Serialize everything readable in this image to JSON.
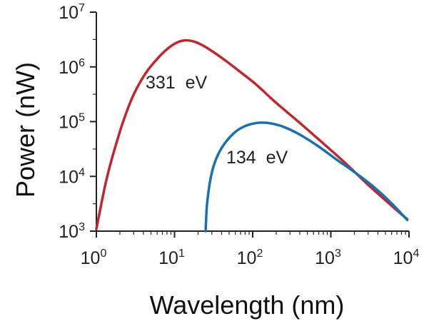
{
  "chart_data": {
    "type": "line",
    "xlabel": "Wavelength (nm)",
    "ylabel": "Power (nW)",
    "xscale": "log",
    "yscale": "log",
    "xlim": [
      1,
      10000
    ],
    "ylim": [
      1000,
      10000000
    ],
    "x_ticks": [
      {
        "base": "10",
        "exp": "0"
      },
      {
        "base": "10",
        "exp": "1"
      },
      {
        "base": "10",
        "exp": "2"
      },
      {
        "base": "10",
        "exp": "3"
      },
      {
        "base": "10",
        "exp": "4"
      }
    ],
    "y_ticks": [
      {
        "base": "10",
        "exp": "3"
      },
      {
        "base": "10",
        "exp": "4"
      },
      {
        "base": "10",
        "exp": "5"
      },
      {
        "base": "10",
        "exp": "6"
      },
      {
        "base": "10",
        "exp": "7"
      }
    ],
    "grid": false,
    "legend": "none",
    "series": [
      {
        "color": "#c0272d",
        "annotation": "331  eV",
        "points": [
          {
            "x": 1.0,
            "y": 1100
          },
          {
            "x": 1.15,
            "y": 3000
          },
          {
            "x": 1.3,
            "y": 7000
          },
          {
            "x": 1.5,
            "y": 16000
          },
          {
            "x": 1.8,
            "y": 40000
          },
          {
            "x": 2.2,
            "y": 100000
          },
          {
            "x": 2.8,
            "y": 250000
          },
          {
            "x": 3.5,
            "y": 480000
          },
          {
            "x": 4.5,
            "y": 850000
          },
          {
            "x": 6.0,
            "y": 1400000
          },
          {
            "x": 8.0,
            "y": 2100000
          },
          {
            "x": 10.5,
            "y": 2750000
          },
          {
            "x": 13.5,
            "y": 3050000
          },
          {
            "x": 17.0,
            "y": 2950000
          },
          {
            "x": 22.0,
            "y": 2550000
          },
          {
            "x": 30.0,
            "y": 1950000
          },
          {
            "x": 45.0,
            "y": 1300000
          },
          {
            "x": 70.0,
            "y": 800000
          },
          {
            "x": 110.0,
            "y": 480000
          },
          {
            "x": 200.0,
            "y": 220000
          },
          {
            "x": 400.0,
            "y": 95000
          },
          {
            "x": 800.0,
            "y": 40000
          },
          {
            "x": 1500.0,
            "y": 18000
          },
          {
            "x": 3000.0,
            "y": 7000
          },
          {
            "x": 6000.0,
            "y": 2900
          },
          {
            "x": 9500.0,
            "y": 1650
          }
        ]
      },
      {
        "color": "#1a6fb0",
        "annotation": "134  eV",
        "points": [
          {
            "x": 25.0,
            "y": 1000
          },
          {
            "x": 25.3,
            "y": 1500
          },
          {
            "x": 26.0,
            "y": 3000
          },
          {
            "x": 28.0,
            "y": 7000
          },
          {
            "x": 31.0,
            "y": 14000
          },
          {
            "x": 36.0,
            "y": 25000
          },
          {
            "x": 45.0,
            "y": 42000
          },
          {
            "x": 60.0,
            "y": 65000
          },
          {
            "x": 80.0,
            "y": 83000
          },
          {
            "x": 105.0,
            "y": 93000
          },
          {
            "x": 130.0,
            "y": 96000
          },
          {
            "x": 170.0,
            "y": 93000
          },
          {
            "x": 250.0,
            "y": 80000
          },
          {
            "x": 400.0,
            "y": 58000
          },
          {
            "x": 700.0,
            "y": 35000
          },
          {
            "x": 1200.0,
            "y": 20000
          },
          {
            "x": 2000.0,
            "y": 12000
          },
          {
            "x": 3500.0,
            "y": 6500
          },
          {
            "x": 6000.0,
            "y": 3200
          },
          {
            "x": 9500.0,
            "y": 1600
          }
        ]
      }
    ]
  }
}
